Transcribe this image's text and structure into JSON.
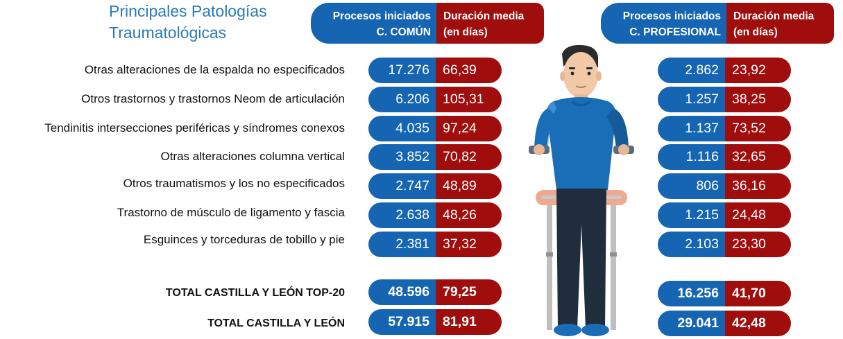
{
  "title": {
    "line1": "Principales Patologías",
    "line2": "Traumatológicas"
  },
  "header_comun": {
    "processes_line1": "Procesos iniciados",
    "processes_line2": "C. COMÚN",
    "duration_line1": "Duración media",
    "duration_line2": "(en días)"
  },
  "header_profesional": {
    "processes_line1": "Procesos iniciados",
    "processes_line2": "C. PROFESIONAL",
    "duration_line1": "Duración media",
    "duration_line2": "(en días)"
  },
  "rows": [
    {
      "label": "Otras alteraciones de la espalda no especificados",
      "comun_procesos": "17.276",
      "comun_duracion": "66,39",
      "prof_procesos": "2.862",
      "prof_duracion": "23,92"
    },
    {
      "label": "Otros trastornos y trastornos Neom de articulación",
      "comun_procesos": "6.206",
      "comun_duracion": "105,31",
      "prof_procesos": "1.257",
      "prof_duracion": "38,25"
    },
    {
      "label": "Tendinitis intersecciones periféricas y síndromes conexos",
      "comun_procesos": "4.035",
      "comun_duracion": "97,24",
      "prof_procesos": "1.137",
      "prof_duracion": "73,52"
    },
    {
      "label": "Otras alteraciones columna vertical",
      "comun_procesos": "3.852",
      "comun_duracion": "70,82",
      "prof_procesos": "1.116",
      "prof_duracion": "32,65"
    },
    {
      "label": "Otros traumatismos y los no especificados",
      "comun_procesos": "2.747",
      "comun_duracion": "48,89",
      "prof_procesos": "806",
      "prof_duracion": "36,16"
    },
    {
      "label": "Trastorno de músculo de ligamento y fascia",
      "comun_procesos": "2.638",
      "comun_duracion": "48,26",
      "prof_procesos": "1.215",
      "prof_duracion": "24,48"
    },
    {
      "label": "Esguinces y torceduras de tobillo y pie",
      "comun_procesos": "2.381",
      "comun_duracion": "37,32",
      "prof_procesos": "2.103",
      "prof_duracion": "23,30"
    }
  ],
  "totals": [
    {
      "label": "TOTAL CASTILLA Y LEÓN TOP-20",
      "comun_procesos": "48.596",
      "comun_duracion": "79,25",
      "prof_procesos": "16.256",
      "prof_duracion": "41,70"
    },
    {
      "label": "TOTAL CASTILLA Y LEÓN",
      "comun_procesos": "57.915",
      "comun_duracion": "81,91",
      "prof_procesos": "29.041",
      "prof_duracion": "42,48"
    }
  ],
  "colors": {
    "blue": "#1565b2",
    "red": "#a00d0d",
    "title": "#2a7ab8"
  },
  "illustration": "person-with-crutches"
}
